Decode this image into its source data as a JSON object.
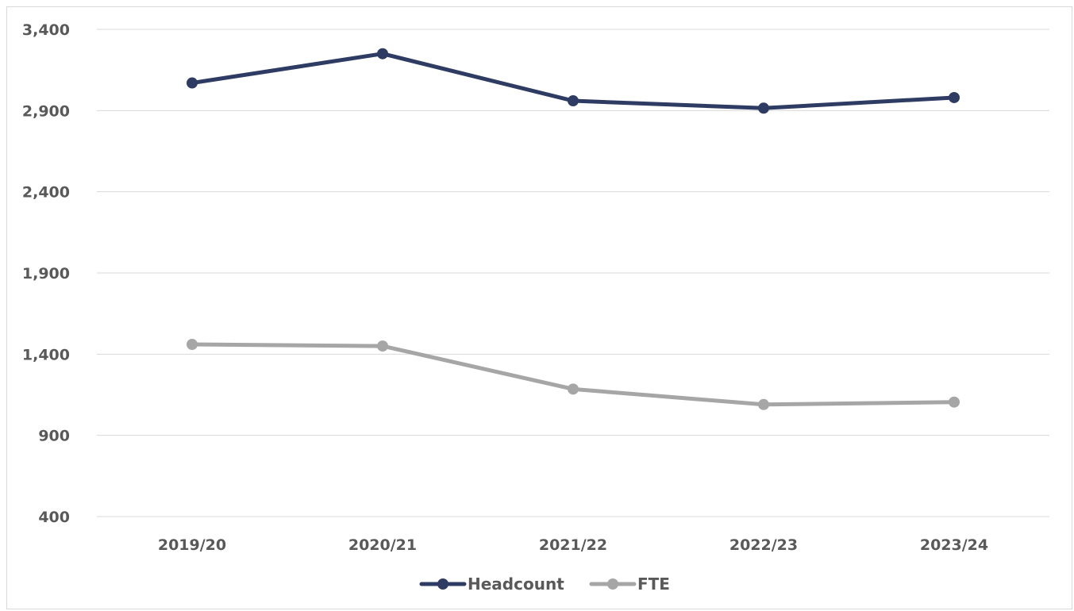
{
  "chart_data": {
    "type": "line",
    "title": "",
    "xlabel": "",
    "ylabel": "",
    "categories": [
      "2019/20",
      "2020/21",
      "2021/22",
      "2022/23",
      "2023/24"
    ],
    "ylim": [
      400,
      3400
    ],
    "yticks": [
      400,
      900,
      1400,
      1900,
      2400,
      2900,
      3400
    ],
    "ytick_labels": [
      "400",
      "900",
      "1,400",
      "1,900",
      "2,400",
      "2,900",
      "3,400"
    ],
    "grid": true,
    "legend_position": "bottom",
    "series": [
      {
        "name": "Headcount",
        "color": "#2e3c63",
        "values": [
          3070,
          3250,
          2960,
          2915,
          2980
        ]
      },
      {
        "name": "FTE",
        "color": "#a6a6a6",
        "values": [
          1460,
          1450,
          1185,
          1090,
          1105
        ]
      }
    ]
  }
}
